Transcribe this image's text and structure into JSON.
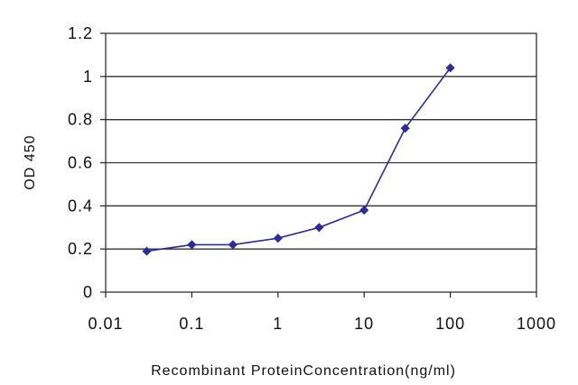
{
  "chart_data": {
    "type": "line",
    "title": "",
    "xlabel": "Recombinant ProteinConcentration(ng/ml)",
    "ylabel": "OD 450",
    "x_scale": "log",
    "xlim": [
      0.01,
      1000
    ],
    "ylim": [
      0,
      1.2
    ],
    "x_ticks": [
      0.01,
      0.1,
      1,
      10,
      100,
      1000
    ],
    "x_tick_labels": [
      "0.01",
      "0.1",
      "1",
      "10",
      "100",
      "1000"
    ],
    "y_ticks": [
      0,
      0.2,
      0.4,
      0.6,
      0.8,
      1,
      1.2
    ],
    "y_tick_labels": [
      "0",
      "0.2",
      "0.4",
      "0.6",
      "0.8",
      "1",
      "1.2"
    ],
    "grid": "horizontal",
    "legend": "none",
    "series": [
      {
        "marker": "diamond",
        "color": "#2b2b9e",
        "x": [
          0.03,
          0.1,
          0.3,
          1,
          3,
          10,
          30,
          100
        ],
        "y": [
          0.19,
          0.22,
          0.22,
          0.25,
          0.3,
          0.38,
          0.76,
          1.04
        ]
      }
    ]
  }
}
